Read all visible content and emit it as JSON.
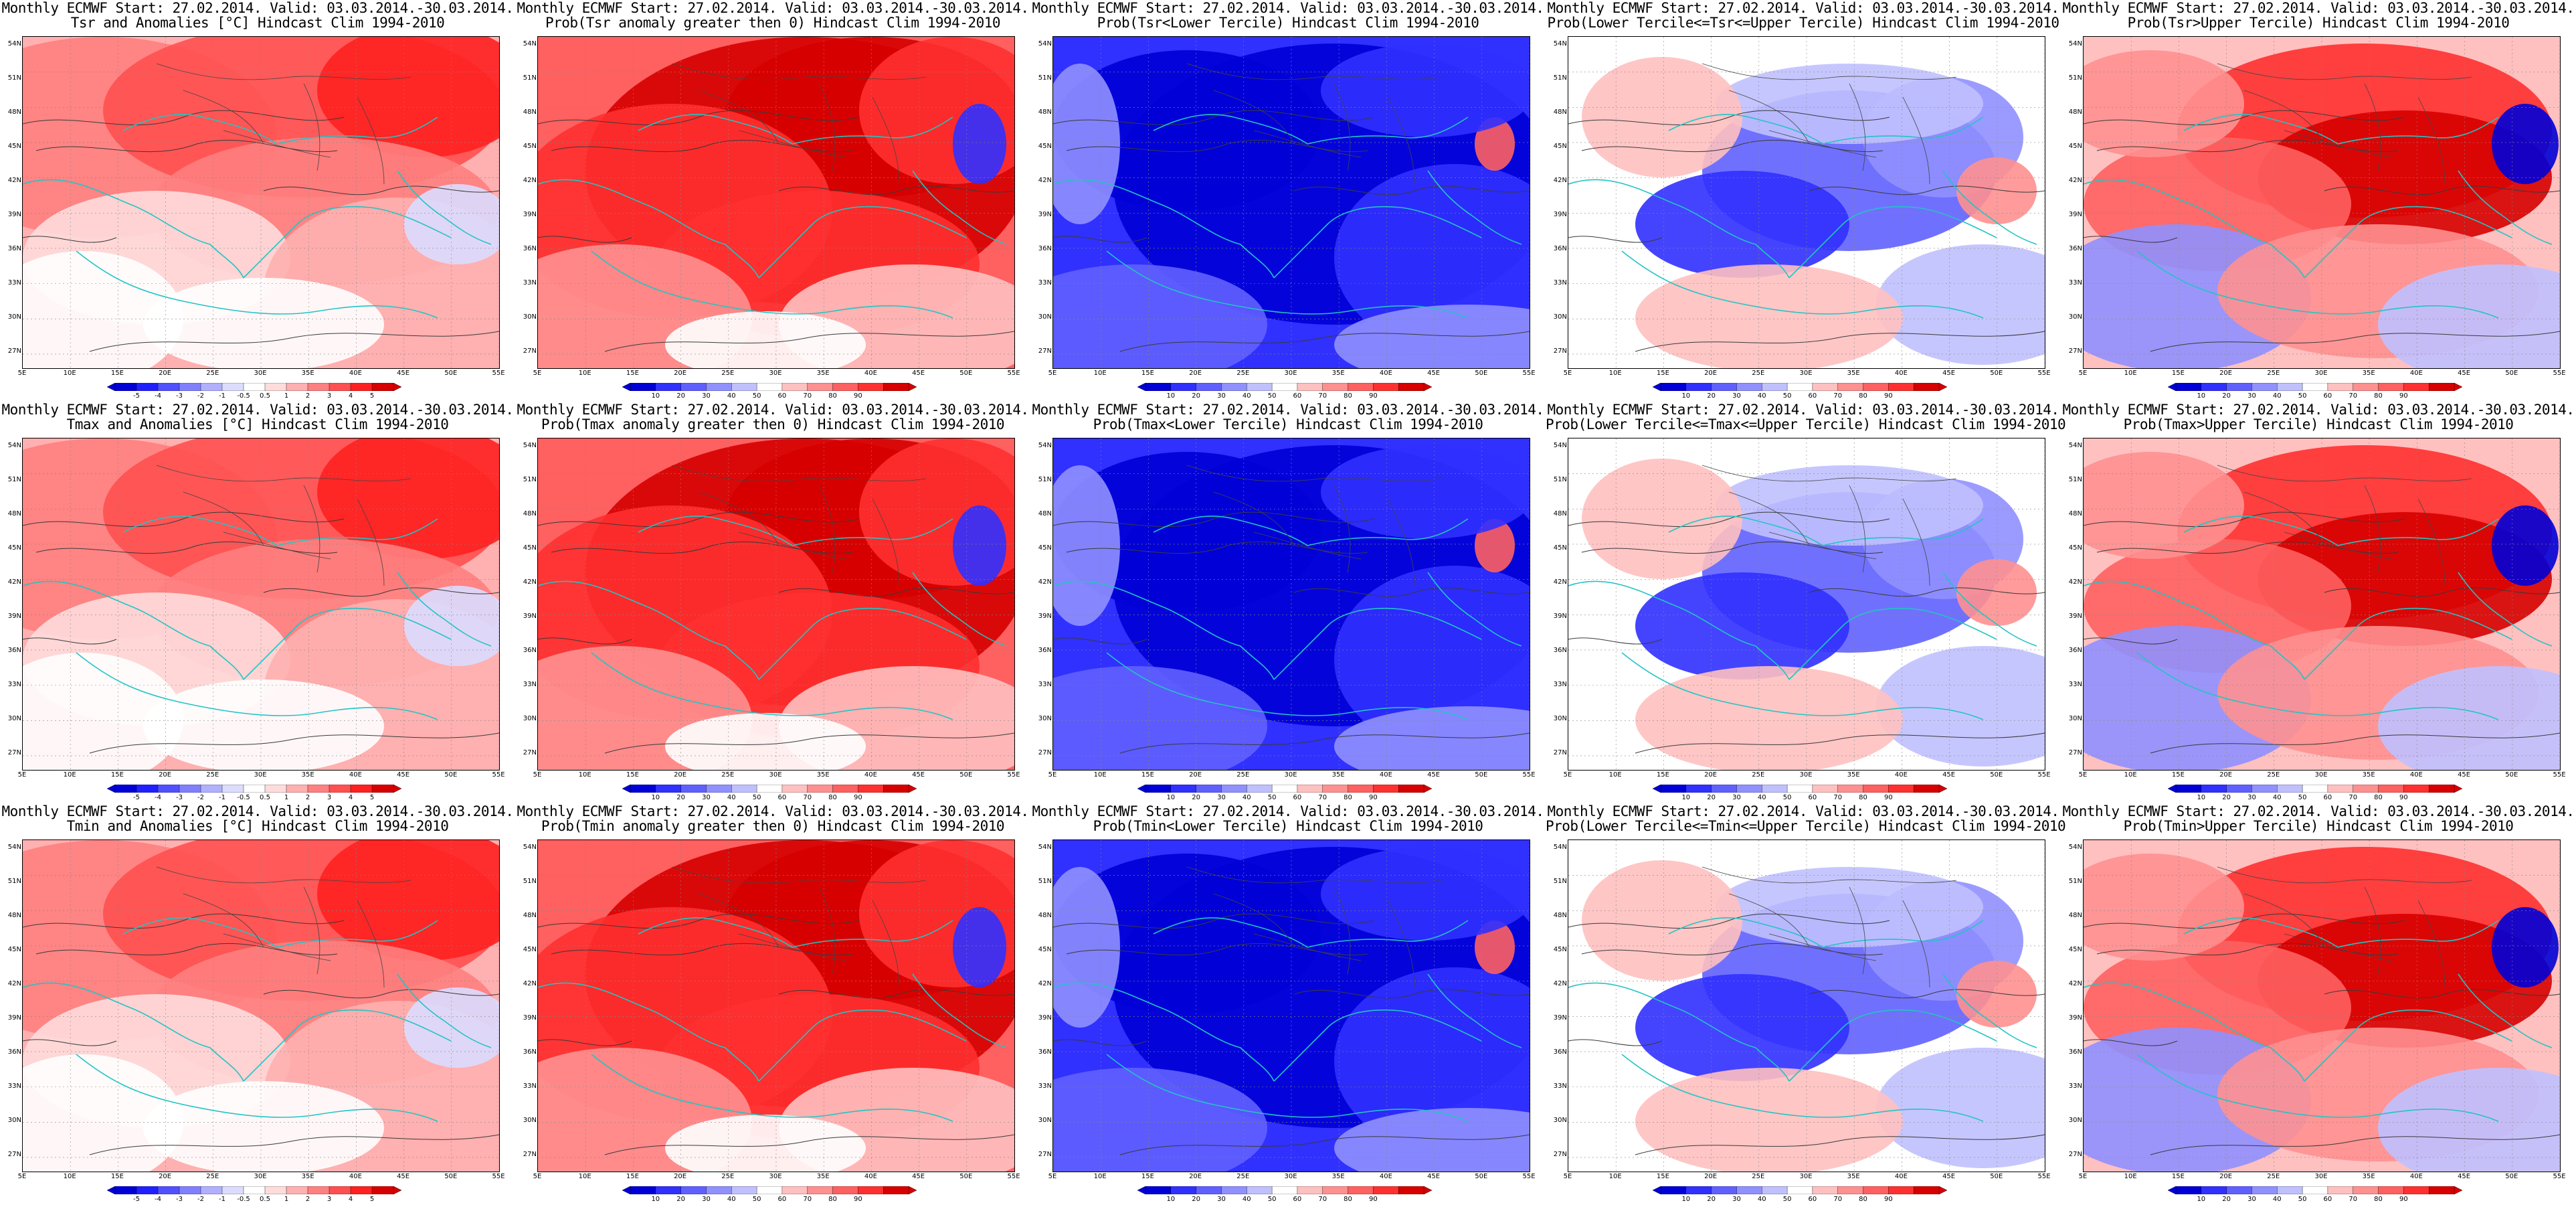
{
  "lat_labels": [
    "54N",
    "51N",
    "48N",
    "45N",
    "42N",
    "39N",
    "36N",
    "33N",
    "30N",
    "27N"
  ],
  "lon_labels": [
    "5E",
    "10E",
    "15E",
    "20E",
    "25E",
    "30E",
    "35E",
    "40E",
    "45E",
    "50E",
    "55E"
  ],
  "palettes": {
    "anomaly": [
      "#0000d6",
      "#2020ff",
      "#5050ff",
      "#8080ff",
      "#b0b0ff",
      "#dcdcff",
      "#ffffff",
      "#ffdcdc",
      "#ffb0b0",
      "#ff8080",
      "#ff5050",
      "#ff2020",
      "#d60000"
    ],
    "prob": [
      "#0000d6",
      "#3030ff",
      "#6060ff",
      "#9090ff",
      "#c0c0ff",
      "#ffffff",
      "#ffc0c0",
      "#ff9090",
      "#ff6060",
      "#ff3030",
      "#d60000"
    ],
    "contour_gray": "#3a3a3a",
    "coast": "#22c4c4"
  },
  "anomaly_ticks": [
    "-5",
    "-4",
    "-3",
    "-2",
    "-1",
    "-0.5",
    "0.5",
    "1",
    "2",
    "3",
    "4",
    "5"
  ],
  "prob_ticks": [
    "10",
    "20",
    "30",
    "40",
    "50",
    "60",
    "70",
    "80",
    "90"
  ],
  "rows": [
    {
      "name": "tsr",
      "panels": [
        {
          "title1": "Monthly ECMWF Start: 27.02.2014. Valid: 03.03.2014.-30.03.2014.",
          "title2": "Tsr and Anomalies [°C] Hindcast Clim 1994-2010",
          "kind": "anomaly",
          "field": "warm_anom"
        },
        {
          "title1": "Monthly ECMWF Start: 27.02.2014. Valid: 03.03.2014.-30.03.2014.",
          "title2": "Prob(Tsr anomaly greater then 0) Hindcast Clim 1994-2010",
          "kind": "prob",
          "field": "high"
        },
        {
          "title1": "Monthly ECMWF Start: 27.02.2014. Valid: 03.03.2014.-30.03.2014.",
          "title2": "Prob(Tsr<Lower Tercile) Hindcast Clim 1994-2010",
          "kind": "prob",
          "field": "low"
        },
        {
          "title1": "Monthly ECMWF Start: 27.02.2014. Valid: 03.03.2014.-30.03.2014.",
          "title2": "Prob(Lower Tercile<=Tsr<=Upper Tercile) Hindcast Clim 1994-2010",
          "kind": "prob",
          "field": "mid"
        },
        {
          "title1": "Monthly ECMWF Start: 27.02.2014. Valid: 03.03.2014.-30.03.2014.",
          "title2": "Prob(Tsr>Upper Tercile) Hindcast Clim 1994-2010",
          "kind": "prob",
          "field": "upper"
        }
      ]
    },
    {
      "name": "tmax",
      "panels": [
        {
          "title1": "Monthly ECMWF Start: 27.02.2014. Valid: 03.03.2014.-30.03.2014.",
          "title2": "Tmax and Anomalies [°C] Hindcast Clim 1994-2010",
          "kind": "anomaly",
          "field": "warm_anom"
        },
        {
          "title1": "Monthly ECMWF Start: 27.02.2014. Valid: 03.03.2014.-30.03.2014.",
          "title2": "Prob(Tmax anomaly greater then 0) Hindcast Clim 1994-2010",
          "kind": "prob",
          "field": "high"
        },
        {
          "title1": "Monthly ECMWF Start: 27.02.2014. Valid: 03.03.2014.-30.03.2014.",
          "title2": "Prob(Tmax<Lower Tercile) Hindcast Clim 1994-2010",
          "kind": "prob",
          "field": "low"
        },
        {
          "title1": "Monthly ECMWF Start: 27.02.2014. Valid: 03.03.2014.-30.03.2014.",
          "title2": "Prob(Lower Tercile<=Tmax<=Upper Tercile) Hindcast Clim 1994-2010",
          "kind": "prob",
          "field": "mid"
        },
        {
          "title1": "Monthly ECMWF Start: 27.02.2014. Valid: 03.03.2014.-30.03.2014.",
          "title2": "Prob(Tmax>Upper Tercile) Hindcast Clim 1994-2010",
          "kind": "prob",
          "field": "upper"
        }
      ]
    },
    {
      "name": "tmin",
      "panels": [
        {
          "title1": "Monthly ECMWF Start: 27.02.2014. Valid: 03.03.2014.-30.03.2014.",
          "title2": "Tmin and Anomalies [°C] Hindcast Clim 1994-2010",
          "kind": "anomaly",
          "field": "warm_anom"
        },
        {
          "title1": "Monthly ECMWF Start: 27.02.2014. Valid: 03.03.2014.-30.03.2014.",
          "title2": "Prob(Tmin anomaly greater then 0) Hindcast Clim 1994-2010",
          "kind": "prob",
          "field": "high"
        },
        {
          "title1": "Monthly ECMWF Start: 27.02.2014. Valid: 03.03.2014.-30.03.2014.",
          "title2": "Prob(Tmin<Lower Tercile) Hindcast Clim 1994-2010",
          "kind": "prob",
          "field": "low"
        },
        {
          "title1": "Monthly ECMWF Start: 27.02.2014. Valid: 03.03.2014.-30.03.2014.",
          "title2": "Prob(Lower Tercile<=Tmin<=Upper Tercile) Hindcast Clim 1994-2010",
          "kind": "prob",
          "field": "mid"
        },
        {
          "title1": "Monthly ECMWF Start: 27.02.2014. Valid: 03.03.2014.-30.03.2014.",
          "title2": "Prob(Tmin>Upper Tercile) Hindcast Clim 1994-2010",
          "kind": "prob",
          "field": "upper"
        }
      ]
    }
  ]
}
